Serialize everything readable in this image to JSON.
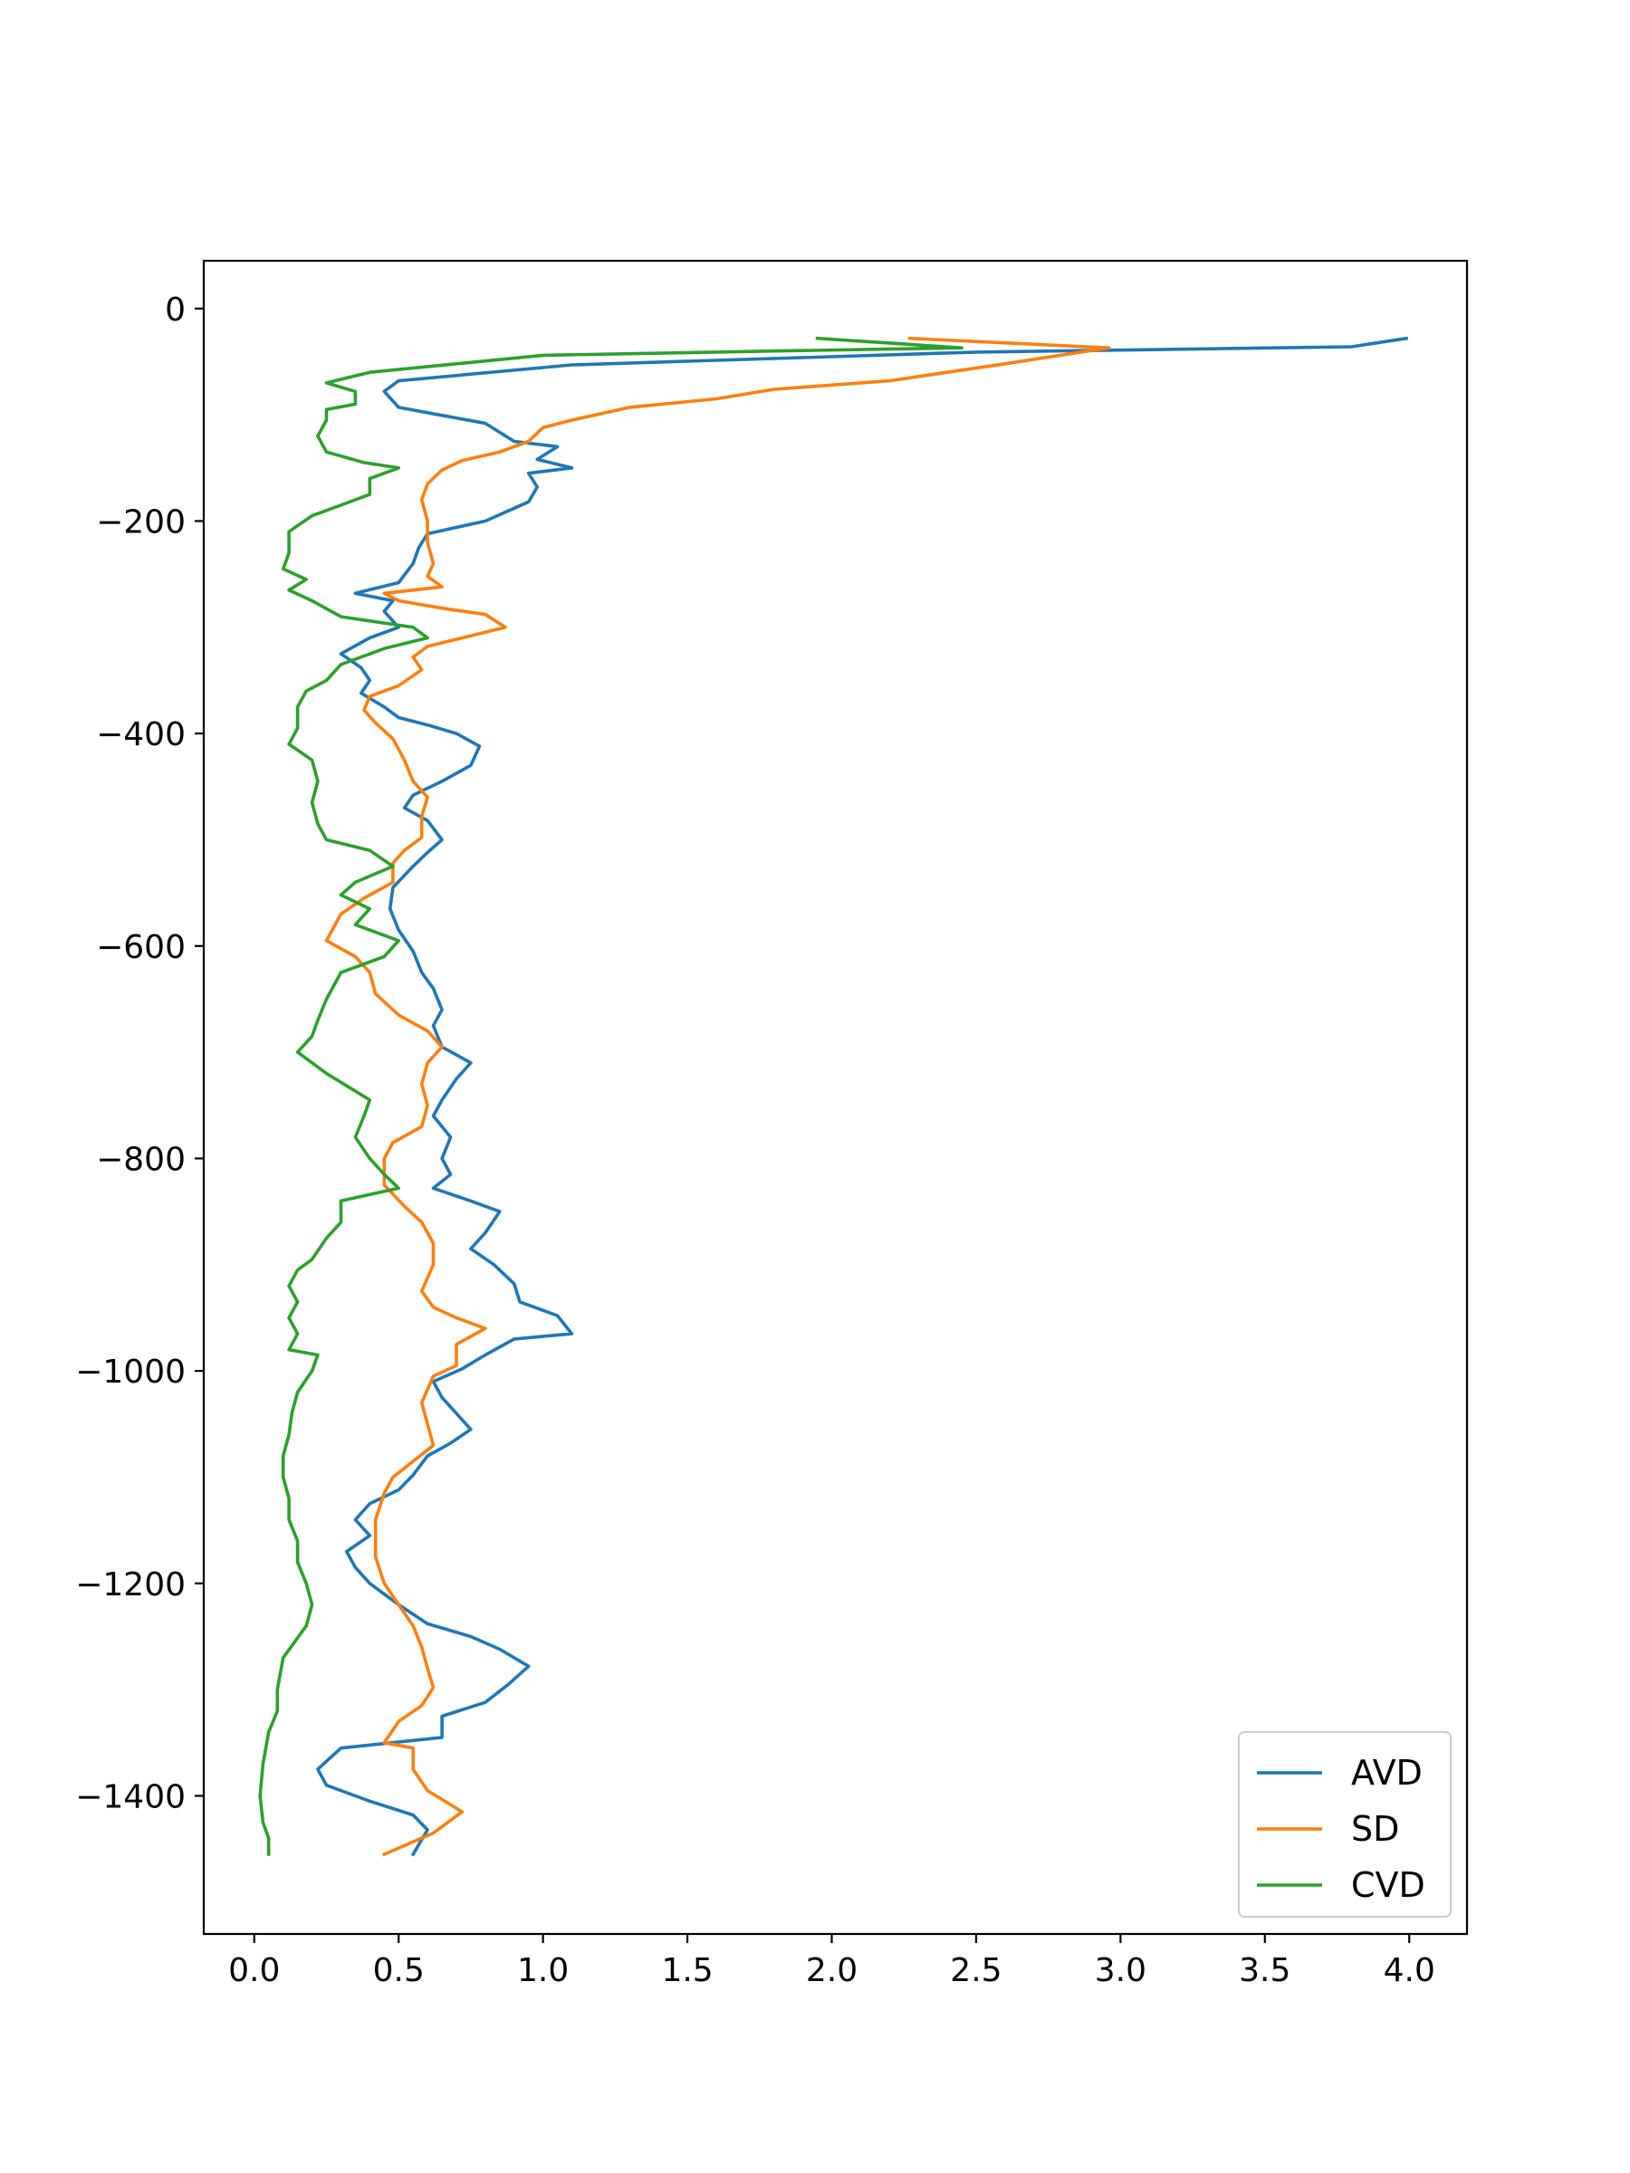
{
  "chart_data": {
    "type": "line",
    "title": "",
    "xlabel": "",
    "ylabel": "",
    "xlim": [
      -0.175,
      4.2
    ],
    "ylim": [
      -1530,
      45
    ],
    "xticks": [
      0.0,
      0.5,
      1.0,
      1.5,
      2.0,
      2.5,
      3.0,
      3.5,
      4.0
    ],
    "xtick_labels": [
      "0.0",
      "0.5",
      "1.0",
      "1.5",
      "2.0",
      "2.5",
      "3.0",
      "3.5",
      "4.0"
    ],
    "yticks": [
      0,
      -200,
      -400,
      -600,
      -800,
      -1000,
      -1200,
      -1400
    ],
    "ytick_labels": [
      "0",
      "−200",
      "−400",
      "−600",
      "−800",
      "−1000",
      "−1200",
      "−1400"
    ],
    "grid": false,
    "legend": "lower-right",
    "series": [
      {
        "name": "AVD",
        "color": "#1f77b4",
        "points": [
          [
            3.99,
            -28
          ],
          [
            3.8,
            -36
          ],
          [
            2.5,
            -41
          ],
          [
            1.1,
            -53
          ],
          [
            0.5,
            -68
          ],
          [
            0.45,
            -78
          ],
          [
            0.5,
            -93
          ],
          [
            0.6,
            -98
          ],
          [
            0.8,
            -108
          ],
          [
            0.9,
            -125
          ],
          [
            1.05,
            -130
          ],
          [
            0.98,
            -142
          ],
          [
            1.1,
            -150
          ],
          [
            0.95,
            -155
          ],
          [
            0.98,
            -168
          ],
          [
            0.95,
            -182
          ],
          [
            0.8,
            -200
          ],
          [
            0.6,
            -212
          ],
          [
            0.57,
            -225
          ],
          [
            0.55,
            -240
          ],
          [
            0.5,
            -258
          ],
          [
            0.35,
            -268
          ],
          [
            0.48,
            -275
          ],
          [
            0.45,
            -285
          ],
          [
            0.5,
            -300
          ],
          [
            0.4,
            -310
          ],
          [
            0.3,
            -325
          ],
          [
            0.37,
            -338
          ],
          [
            0.4,
            -350
          ],
          [
            0.37,
            -362
          ],
          [
            0.45,
            -375
          ],
          [
            0.5,
            -385
          ],
          [
            0.6,
            -392
          ],
          [
            0.7,
            -400
          ],
          [
            0.78,
            -412
          ],
          [
            0.75,
            -430
          ],
          [
            0.65,
            -445
          ],
          [
            0.55,
            -458
          ],
          [
            0.52,
            -470
          ],
          [
            0.6,
            -482
          ],
          [
            0.65,
            -500
          ],
          [
            0.6,
            -512
          ],
          [
            0.55,
            -525
          ],
          [
            0.48,
            -545
          ],
          [
            0.47,
            -565
          ],
          [
            0.5,
            -585
          ],
          [
            0.55,
            -605
          ],
          [
            0.58,
            -625
          ],
          [
            0.62,
            -640
          ],
          [
            0.65,
            -660
          ],
          [
            0.62,
            -675
          ],
          [
            0.65,
            -695
          ],
          [
            0.75,
            -710
          ],
          [
            0.7,
            -725
          ],
          [
            0.65,
            -745
          ],
          [
            0.62,
            -760
          ],
          [
            0.68,
            -780
          ],
          [
            0.65,
            -800
          ],
          [
            0.68,
            -815
          ],
          [
            0.62,
            -828
          ],
          [
            0.75,
            -840
          ],
          [
            0.85,
            -850
          ],
          [
            0.8,
            -870
          ],
          [
            0.75,
            -885
          ],
          [
            0.83,
            -900
          ],
          [
            0.9,
            -918
          ],
          [
            0.92,
            -935
          ],
          [
            1.05,
            -948
          ],
          [
            1.1,
            -965
          ],
          [
            0.9,
            -970
          ],
          [
            0.8,
            -985
          ],
          [
            0.72,
            -998
          ],
          [
            0.62,
            -1010
          ],
          [
            0.65,
            -1025
          ],
          [
            0.7,
            -1040
          ],
          [
            0.75,
            -1055
          ],
          [
            0.68,
            -1068
          ],
          [
            0.6,
            -1080
          ],
          [
            0.55,
            -1098
          ],
          [
            0.5,
            -1112
          ],
          [
            0.4,
            -1125
          ],
          [
            0.35,
            -1140
          ],
          [
            0.4,
            -1155
          ],
          [
            0.32,
            -1170
          ],
          [
            0.35,
            -1185
          ],
          [
            0.4,
            -1200
          ],
          [
            0.5,
            -1220
          ],
          [
            0.6,
            -1238
          ],
          [
            0.75,
            -1250
          ],
          [
            0.85,
            -1262
          ],
          [
            0.95,
            -1278
          ],
          [
            0.88,
            -1295
          ],
          [
            0.8,
            -1312
          ],
          [
            0.65,
            -1325
          ],
          [
            0.65,
            -1345
          ],
          [
            0.3,
            -1355
          ],
          [
            0.22,
            -1375
          ],
          [
            0.25,
            -1390
          ],
          [
            0.4,
            -1405
          ],
          [
            0.55,
            -1418
          ],
          [
            0.6,
            -1432
          ],
          [
            0.55,
            -1455
          ]
        ]
      },
      {
        "name": "SD",
        "color": "#ff7f0e",
        "points": [
          [
            2.27,
            -28
          ],
          [
            2.96,
            -37
          ],
          [
            2.6,
            -52
          ],
          [
            2.2,
            -68
          ],
          [
            1.8,
            -76
          ],
          [
            1.6,
            -85
          ],
          [
            1.3,
            -93
          ],
          [
            1.1,
            -105
          ],
          [
            1.0,
            -112
          ],
          [
            0.95,
            -125
          ],
          [
            0.85,
            -135
          ],
          [
            0.72,
            -143
          ],
          [
            0.65,
            -152
          ],
          [
            0.6,
            -165
          ],
          [
            0.58,
            -180
          ],
          [
            0.6,
            -200
          ],
          [
            0.6,
            -220
          ],
          [
            0.62,
            -240
          ],
          [
            0.6,
            -252
          ],
          [
            0.65,
            -262
          ],
          [
            0.45,
            -268
          ],
          [
            0.5,
            -275
          ],
          [
            0.65,
            -282
          ],
          [
            0.8,
            -288
          ],
          [
            0.87,
            -300
          ],
          [
            0.75,
            -308
          ],
          [
            0.6,
            -318
          ],
          [
            0.55,
            -328
          ],
          [
            0.58,
            -340
          ],
          [
            0.5,
            -355
          ],
          [
            0.4,
            -365
          ],
          [
            0.38,
            -378
          ],
          [
            0.42,
            -390
          ],
          [
            0.48,
            -405
          ],
          [
            0.52,
            -425
          ],
          [
            0.55,
            -445
          ],
          [
            0.6,
            -460
          ],
          [
            0.58,
            -478
          ],
          [
            0.58,
            -498
          ],
          [
            0.52,
            -510
          ],
          [
            0.48,
            -522
          ],
          [
            0.48,
            -540
          ],
          [
            0.38,
            -555
          ],
          [
            0.3,
            -570
          ],
          [
            0.25,
            -595
          ],
          [
            0.35,
            -610
          ],
          [
            0.4,
            -625
          ],
          [
            0.42,
            -645
          ],
          [
            0.5,
            -665
          ],
          [
            0.6,
            -680
          ],
          [
            0.65,
            -695
          ],
          [
            0.6,
            -710
          ],
          [
            0.58,
            -730
          ],
          [
            0.6,
            -750
          ],
          [
            0.58,
            -770
          ],
          [
            0.48,
            -785
          ],
          [
            0.45,
            -800
          ],
          [
            0.45,
            -825
          ],
          [
            0.52,
            -845
          ],
          [
            0.58,
            -860
          ],
          [
            0.62,
            -880
          ],
          [
            0.62,
            -900
          ],
          [
            0.58,
            -925
          ],
          [
            0.62,
            -940
          ],
          [
            0.7,
            -950
          ],
          [
            0.8,
            -960
          ],
          [
            0.7,
            -975
          ],
          [
            0.7,
            -985
          ],
          [
            0.7,
            -995
          ],
          [
            0.62,
            -1005
          ],
          [
            0.58,
            -1030
          ],
          [
            0.6,
            -1050
          ],
          [
            0.62,
            -1070
          ],
          [
            0.55,
            -1085
          ],
          [
            0.48,
            -1100
          ],
          [
            0.45,
            -1115
          ],
          [
            0.42,
            -1140
          ],
          [
            0.42,
            -1175
          ],
          [
            0.45,
            -1200
          ],
          [
            0.5,
            -1220
          ],
          [
            0.55,
            -1240
          ],
          [
            0.58,
            -1260
          ],
          [
            0.6,
            -1280
          ],
          [
            0.62,
            -1298
          ],
          [
            0.58,
            -1315
          ],
          [
            0.5,
            -1330
          ],
          [
            0.45,
            -1350
          ],
          [
            0.55,
            -1355
          ],
          [
            0.55,
            -1375
          ],
          [
            0.6,
            -1395
          ],
          [
            0.72,
            -1415
          ],
          [
            0.62,
            -1435
          ],
          [
            0.45,
            -1455
          ]
        ]
      },
      {
        "name": "CVD",
        "color": "#2ca02c",
        "points": [
          [
            1.95,
            -28
          ],
          [
            2.45,
            -37
          ],
          [
            1.8,
            -40
          ],
          [
            1.0,
            -44
          ],
          [
            0.4,
            -60
          ],
          [
            0.25,
            -70
          ],
          [
            0.35,
            -78
          ],
          [
            0.35,
            -90
          ],
          [
            0.25,
            -95
          ],
          [
            0.25,
            -105
          ],
          [
            0.22,
            -120
          ],
          [
            0.25,
            -135
          ],
          [
            0.38,
            -145
          ],
          [
            0.5,
            -150
          ],
          [
            0.4,
            -160
          ],
          [
            0.4,
            -175
          ],
          [
            0.3,
            -185
          ],
          [
            0.2,
            -195
          ],
          [
            0.12,
            -210
          ],
          [
            0.12,
            -230
          ],
          [
            0.1,
            -245
          ],
          [
            0.18,
            -255
          ],
          [
            0.12,
            -265
          ],
          [
            0.2,
            -275
          ],
          [
            0.3,
            -290
          ],
          [
            0.55,
            -300
          ],
          [
            0.6,
            -310
          ],
          [
            0.45,
            -320
          ],
          [
            0.3,
            -335
          ],
          [
            0.25,
            -350
          ],
          [
            0.18,
            -360
          ],
          [
            0.15,
            -375
          ],
          [
            0.15,
            -395
          ],
          [
            0.12,
            -410
          ],
          [
            0.2,
            -425
          ],
          [
            0.22,
            -445
          ],
          [
            0.2,
            -465
          ],
          [
            0.22,
            -485
          ],
          [
            0.25,
            -500
          ],
          [
            0.4,
            -510
          ],
          [
            0.48,
            -525
          ],
          [
            0.35,
            -540
          ],
          [
            0.3,
            -552
          ],
          [
            0.4,
            -565
          ],
          [
            0.35,
            -580
          ],
          [
            0.5,
            -595
          ],
          [
            0.45,
            -610
          ],
          [
            0.3,
            -625
          ],
          [
            0.25,
            -650
          ],
          [
            0.22,
            -670
          ],
          [
            0.2,
            -685
          ],
          [
            0.15,
            -700
          ],
          [
            0.25,
            -720
          ],
          [
            0.4,
            -745
          ],
          [
            0.38,
            -760
          ],
          [
            0.35,
            -780
          ],
          [
            0.4,
            -800
          ],
          [
            0.45,
            -815
          ],
          [
            0.5,
            -828
          ],
          [
            0.3,
            -840
          ],
          [
            0.3,
            -860
          ],
          [
            0.25,
            -875
          ],
          [
            0.2,
            -895
          ],
          [
            0.15,
            -905
          ],
          [
            0.12,
            -920
          ],
          [
            0.15,
            -935
          ],
          [
            0.12,
            -950
          ],
          [
            0.15,
            -965
          ],
          [
            0.12,
            -980
          ],
          [
            0.22,
            -985
          ],
          [
            0.2,
            -1000
          ],
          [
            0.15,
            -1020
          ],
          [
            0.13,
            -1040
          ],
          [
            0.12,
            -1060
          ],
          [
            0.1,
            -1080
          ],
          [
            0.1,
            -1100
          ],
          [
            0.12,
            -1120
          ],
          [
            0.12,
            -1140
          ],
          [
            0.15,
            -1160
          ],
          [
            0.15,
            -1180
          ],
          [
            0.18,
            -1200
          ],
          [
            0.2,
            -1220
          ],
          [
            0.18,
            -1240
          ],
          [
            0.1,
            -1270
          ],
          [
            0.08,
            -1300
          ],
          [
            0.08,
            -1320
          ],
          [
            0.05,
            -1340
          ],
          [
            0.03,
            -1370
          ],
          [
            0.02,
            -1400
          ],
          [
            0.03,
            -1425
          ],
          [
            0.05,
            -1440
          ],
          [
            0.05,
            -1455
          ]
        ]
      }
    ]
  }
}
